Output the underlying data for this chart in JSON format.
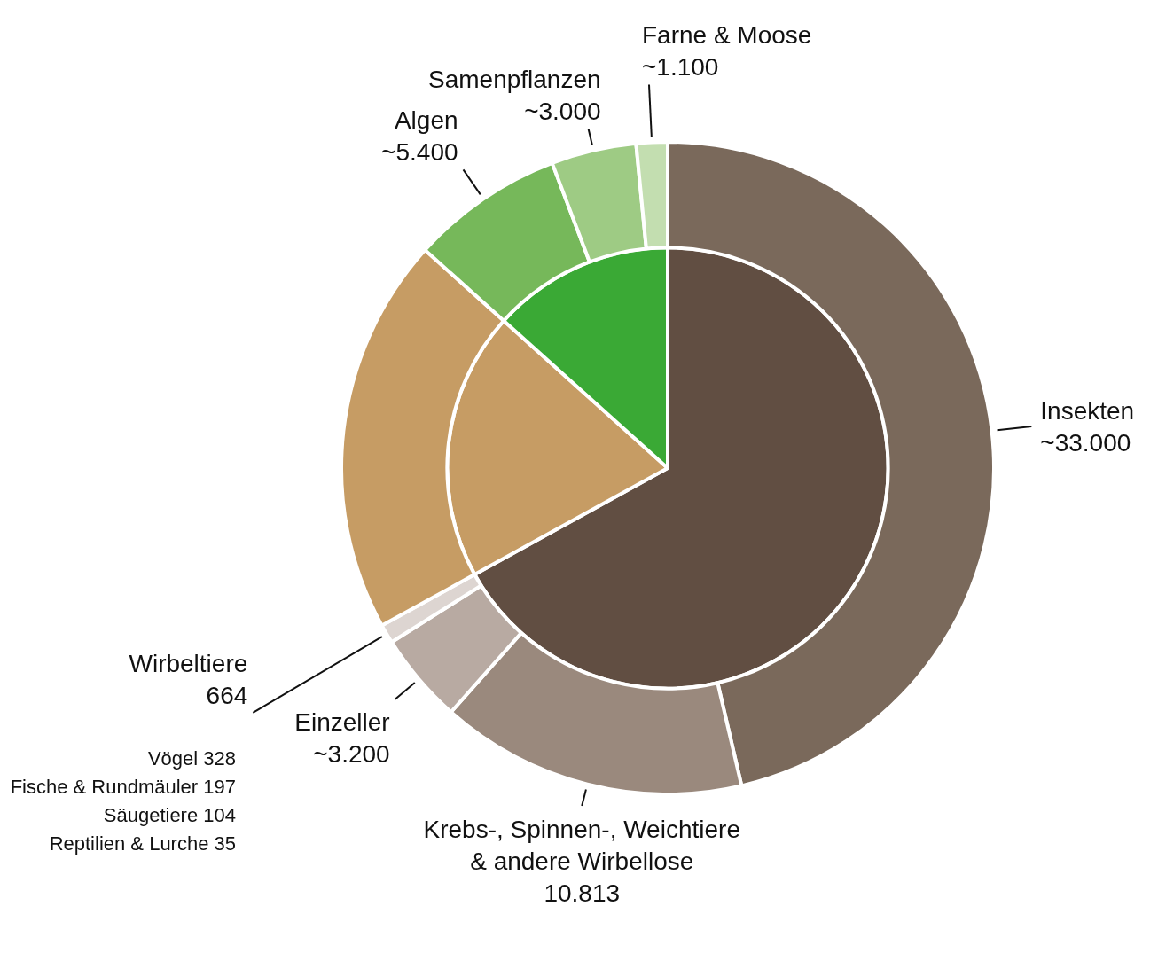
{
  "chart_data": {
    "type": "pie",
    "legend": false,
    "categories": [
      "Insekten",
      "Krebs-, Spinnen-, Weichtiere & andere Wirbellose",
      "Einzeller",
      "Wirbeltiere",
      null,
      "Algen",
      "Samenpflanzen",
      "Farne & Moose"
    ],
    "series": [
      {
        "values": [
          33000,
          10813,
          3200,
          664,
          14000,
          5400,
          3000,
          1100
        ],
        "colors": [
          "#7a695b",
          "#9a897d",
          "#b8aaa2",
          "#ddd5d1",
          "#c69c64",
          "#76b85a",
          "#9ecb84",
          "#c3deb0"
        ],
        "value_labels": [
          "~33.000",
          "10.813",
          "~3.200",
          "664",
          null,
          "~5.400",
          "~3.000",
          "~1.100"
        ]
      },
      {
        "values": [
          66.98,
          null,
          null,
          null,
          19.67,
          13.35,
          null,
          null
        ],
        "colors": [
          "#614e42",
          null,
          null,
          null,
          "#c69c64",
          "#3aa935",
          null,
          null
        ]
      }
    ],
    "annotations": [
      "Vögel 328",
      "Fische & Rundmäuler 197",
      "Säugetiere 104",
      "Reptilien & Lurche 35"
    ]
  }
}
